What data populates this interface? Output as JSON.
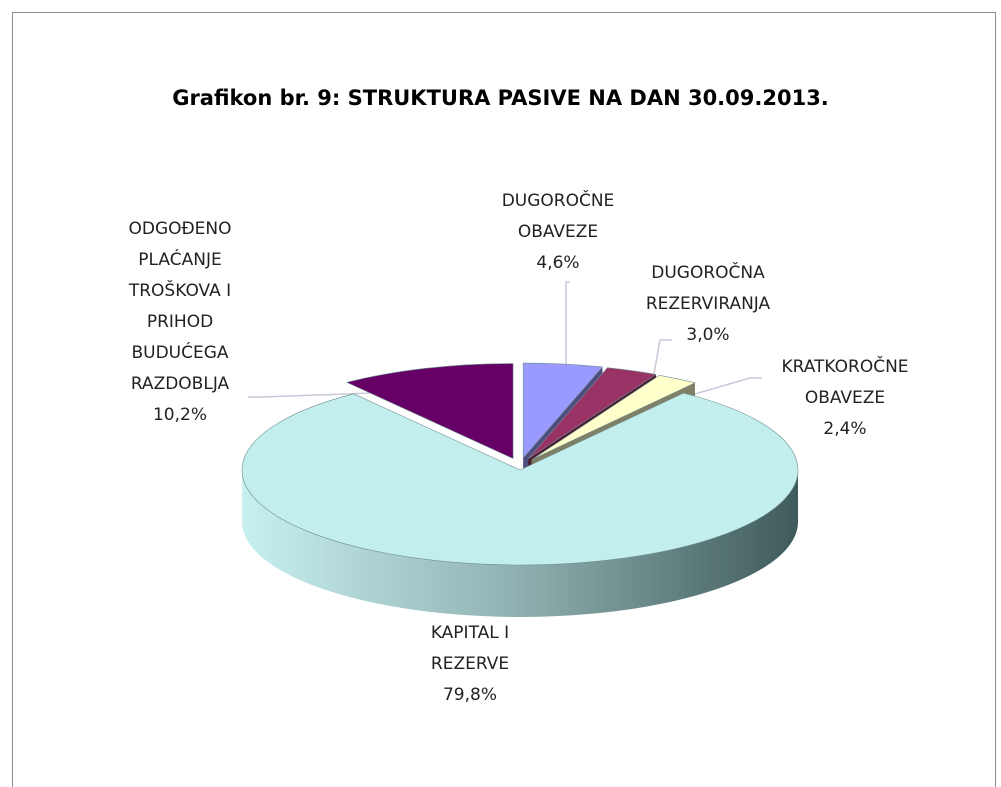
{
  "chart_data": {
    "type": "pie",
    "title": "Grafikon br. 9: STRUKTURA PASIVE NA DAN 30.09.2013.",
    "categories": [
      "DUGOROČNE OBAVEZE",
      "DUGOROČNA REZERVIRANJA",
      "KRATKOROČNE OBAVEZE",
      "KAPITAL I REZERVE",
      "ODGOĐENO PLAĆANJE TROŠKOVA I PRIHOD BUDUĆEGA RAZDOBLJA"
    ],
    "values": [
      4.6,
      3.0,
      2.4,
      79.8,
      10.2
    ],
    "value_labels": [
      "4,6%",
      "3,0%",
      "2,4%",
      "79,8%",
      "10,2%"
    ],
    "colors": [
      "#9999ff",
      "#993366",
      "#ffffcc",
      "#c2eeee",
      "#660066"
    ]
  }
}
